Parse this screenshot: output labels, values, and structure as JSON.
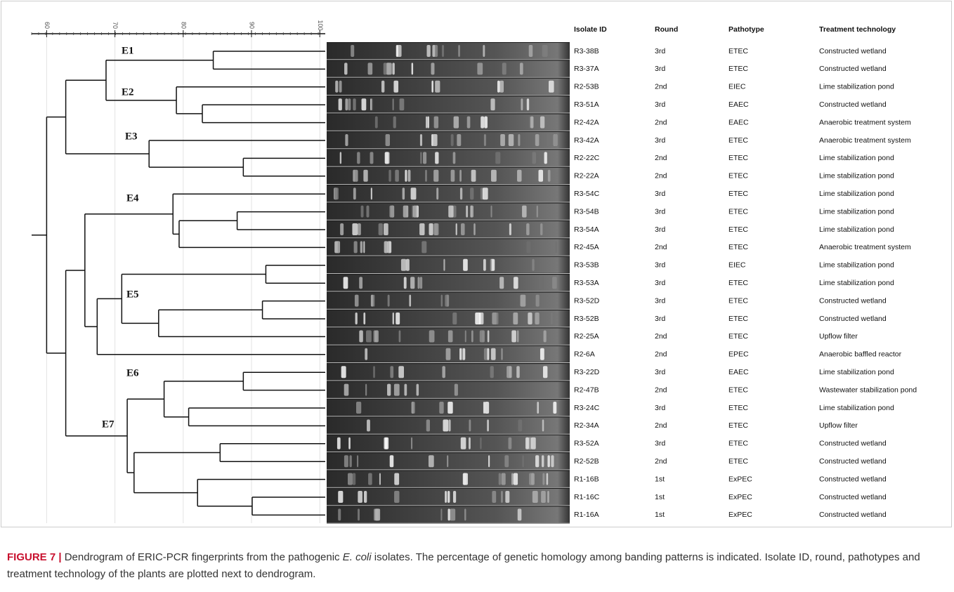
{
  "figure": {
    "axis": {
      "xlim": [
        57.8,
        100.8
      ],
      "xticks": [
        60,
        70,
        80,
        90,
        100
      ]
    },
    "dendrogram": {
      "merges": [
        [
          0,
          1,
          84.4
        ],
        [
          3,
          4,
          82.8
        ],
        [
          2,
          28,
          79
        ],
        [
          27,
          29,
          68.7
        ],
        [
          6,
          7,
          88.8
        ],
        [
          5,
          31,
          75
        ],
        [
          30,
          32,
          62.8
        ],
        [
          9,
          10,
          87.9
        ],
        [
          34,
          11,
          79.4
        ],
        [
          8,
          35,
          78.5
        ],
        [
          12,
          13,
          92.1
        ],
        [
          14,
          15,
          91.6
        ],
        [
          38,
          16,
          76.4
        ],
        [
          37,
          39,
          71
        ],
        [
          40,
          17,
          67.4
        ],
        [
          36,
          41,
          65.6
        ],
        [
          18,
          19,
          88.8
        ],
        [
          20,
          21,
          80.8
        ],
        [
          43,
          44,
          77.2
        ],
        [
          22,
          23,
          85.4
        ],
        [
          25,
          26,
          90.1
        ],
        [
          24,
          47,
          82.1
        ],
        [
          46,
          48,
          72.8
        ],
        [
          45,
          49,
          71.8
        ],
        [
          42,
          50,
          62.8
        ],
        [
          33,
          51,
          60
        ]
      ]
    },
    "clusters": [
      "E1",
      "E2",
      "E3",
      "E4",
      "E5",
      "E6",
      "E7"
    ],
    "table": {
      "columns": [
        "Isolate ID",
        "Round",
        "Pathotype",
        "Treatment technology"
      ],
      "rows": [
        [
          "R3-38B",
          "3rd",
          "ETEC",
          "Constructed wetland"
        ],
        [
          "R3-37A",
          "3rd",
          "ETEC",
          "Constructed wetland"
        ],
        [
          "R2-53B",
          "2nd",
          "EIEC",
          "Lime stabilization pond"
        ],
        [
          "R3-51A",
          "3rd",
          "EAEC",
          "Constructed wetland"
        ],
        [
          "R2-42A",
          "2nd",
          "EAEC",
          "Anaerobic treatment system"
        ],
        [
          "R3-42A",
          "3rd",
          "ETEC",
          "Anaerobic treatment system"
        ],
        [
          "R2-22C",
          "2nd",
          "ETEC",
          "Lime stabilization pond"
        ],
        [
          "R2-22A",
          "2nd",
          "ETEC",
          "Lime stabilization pond"
        ],
        [
          "R3-54C",
          "3rd",
          "ETEC",
          "Lime stabilization pond"
        ],
        [
          "R3-54B",
          "3rd",
          "ETEC",
          "Lime stabilization pond"
        ],
        [
          "R3-54A",
          "3rd",
          "ETEC",
          "Lime stabilization pond"
        ],
        [
          "R2-45A",
          "2nd",
          "ETEC",
          "Anaerobic treatment system"
        ],
        [
          "R3-53B",
          "3rd",
          "EIEC",
          "Lime stabilization pond"
        ],
        [
          "R3-53A",
          "3rd",
          "ETEC",
          "Lime stabilization pond"
        ],
        [
          "R3-52D",
          "3rd",
          "ETEC",
          "Constructed wetland"
        ],
        [
          "R3-52B",
          "3rd",
          "ETEC",
          "Constructed wetland"
        ],
        [
          "R2-25A",
          "2nd",
          "ETEC",
          "Upflow filter"
        ],
        [
          "R2-6A",
          "2nd",
          "EPEC",
          "Anaerobic baffled reactor"
        ],
        [
          "R3-22D",
          "3rd",
          "EAEC",
          "Lime stabilization pond"
        ],
        [
          "R2-47B",
          "2nd",
          "ETEC",
          "Wastewater stabilization pond"
        ],
        [
          "R3-24C",
          "3rd",
          "ETEC",
          "Lime stabilization pond"
        ],
        [
          "R2-34A",
          "2nd",
          "ETEC",
          "Upflow filter"
        ],
        [
          "R3-52A",
          "3rd",
          "ETEC",
          "Constructed wetland"
        ],
        [
          "R2-52B",
          "2nd",
          "ETEC",
          "Constructed wetland"
        ],
        [
          "R1-16B",
          "1st",
          "ExPEC",
          "Constructed wetland"
        ],
        [
          "R1-16C",
          "1st",
          "ExPEC",
          "Constructed wetland"
        ],
        [
          "R1-16A",
          "1st",
          "ExPEC",
          "Constructed wetland"
        ]
      ]
    },
    "caption": {
      "label": "FIGURE 7 |",
      "text_before": "Dendrogram of ERIC-PCR fingerprints from the pathogenic",
      "italic": "E. coli",
      "text_after": "isolates. The percentage of genetic homology among banding patterns is indicated. Isolate ID, round, pathotypes and treatment technology of the plants are plotted next to dendrogram."
    }
  }
}
